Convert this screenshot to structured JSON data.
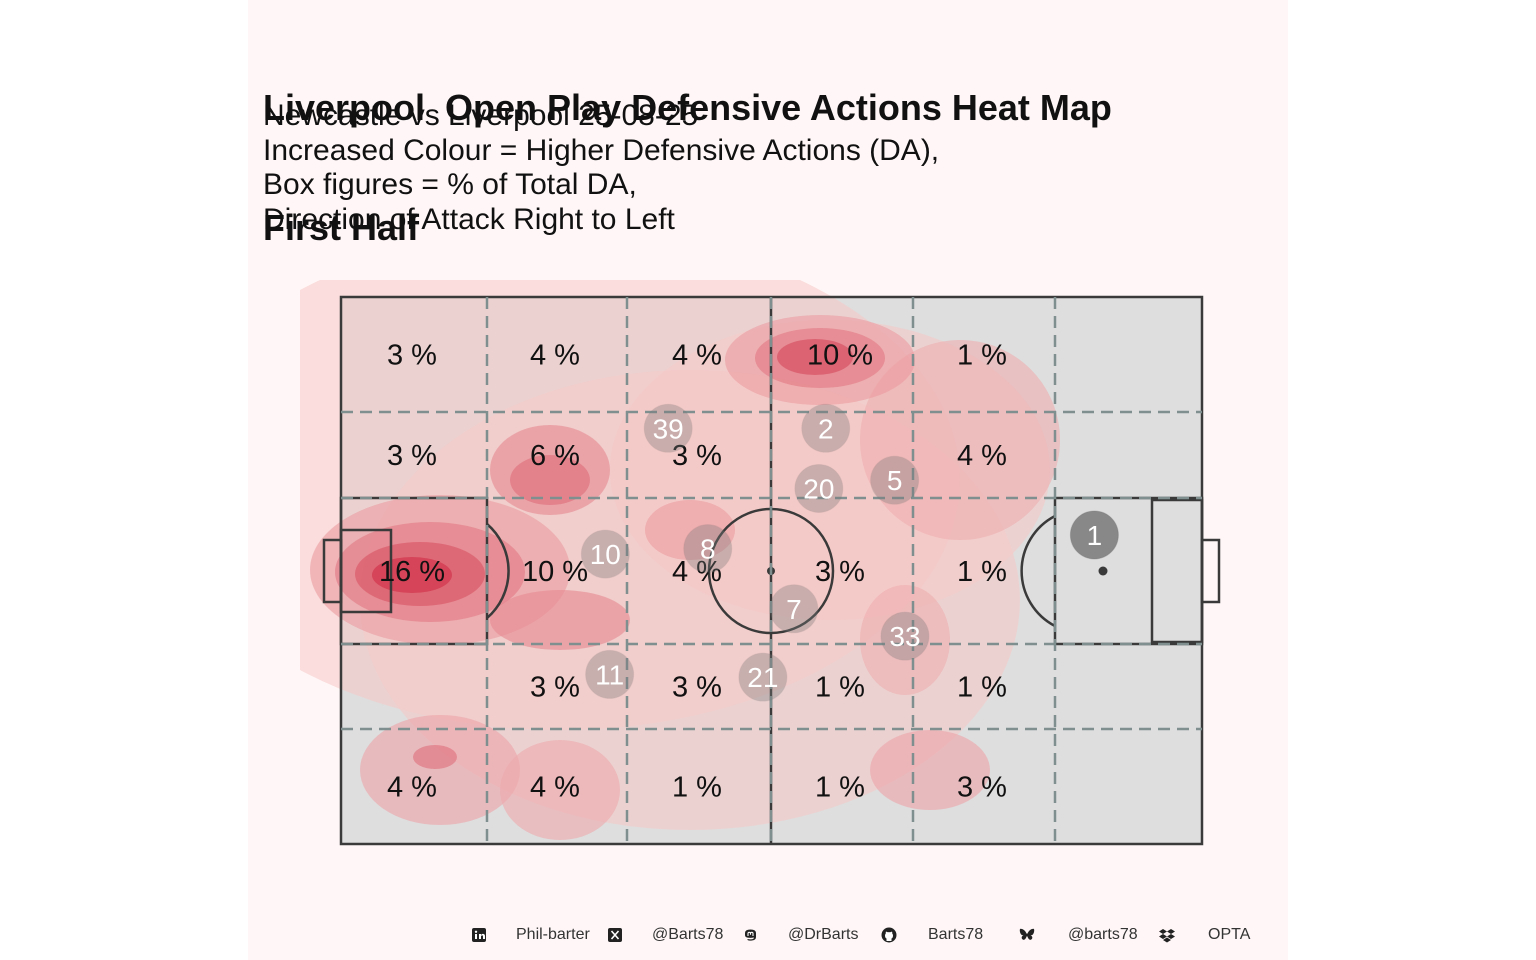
{
  "title_lines": [
    "Liverpool  Open Play Defensive Actions Heat Map",
    "First Half"
  ],
  "subtitle_lines": [
    "Newcastle vs Liverpool 25-08-25",
    "Increased Colour = Higher Defensive Actions (DA),",
    "Box figures = % of Total DA,",
    "Direction of Attack Right to Left"
  ],
  "colors": {
    "panel_background": "#fff7f7",
    "pitch_fill": "#dedede",
    "pitch_lines": "#3a3a3a",
    "zone_lines": "#7f8f8f",
    "heat_low": "#f6c9c6",
    "heat_high": "#c8102e",
    "player_marker": "#7a7a7a"
  },
  "chart_data": {
    "type": "heatmap",
    "title": "Liverpool  Open Play Defensive Actions Heat Map First Half",
    "units": "% of Total DA",
    "grid": {
      "columns": 6,
      "rows": 5
    },
    "zone_labels": [
      [
        "3 %",
        "4 %",
        "4 %",
        "10 %",
        "1 %",
        ""
      ],
      [
        "3 %",
        "6 %",
        "3 %",
        "",
        "4 %",
        ""
      ],
      [
        "16 %",
        "10 %",
        "4 %",
        "3 %",
        "1 %",
        ""
      ],
      [
        "",
        "3 %",
        "3 %",
        "1 %",
        "1 %",
        ""
      ],
      [
        "4 %",
        "4 %",
        "1 %",
        "1 %",
        "3 %",
        ""
      ]
    ],
    "zone_values": [
      [
        3,
        4,
        4,
        10,
        1,
        null
      ],
      [
        3,
        6,
        3,
        null,
        4,
        null
      ],
      [
        16,
        10,
        4,
        3,
        1,
        null
      ],
      [
        null,
        3,
        3,
        1,
        1,
        null
      ],
      [
        4,
        4,
        1,
        1,
        3,
        null
      ]
    ],
    "player_positions": [
      {
        "label": "39",
        "x": 38.0,
        "y": 24.0
      },
      {
        "label": "2",
        "x": 56.3,
        "y": 24.0
      },
      {
        "label": "20",
        "x": 55.5,
        "y": 35.0
      },
      {
        "label": "5",
        "x": 64.3,
        "y": 33.5
      },
      {
        "label": "1",
        "x": 87.5,
        "y": 43.5
      },
      {
        "label": "8",
        "x": 42.6,
        "y": 46.0
      },
      {
        "label": "10",
        "x": 30.7,
        "y": 47.0
      },
      {
        "label": "7",
        "x": 52.6,
        "y": 57.0
      },
      {
        "label": "33",
        "x": 65.5,
        "y": 62.0
      },
      {
        "label": "11",
        "x": 31.2,
        "y": 69.0
      },
      {
        "label": "21",
        "x": 49.0,
        "y": 69.5
      }
    ]
  },
  "footer": {
    "linkedin": {
      "icon": "linkedin-icon",
      "text": "Phil-barter"
    },
    "x": {
      "icon": "x-icon",
      "text": "@Barts78"
    },
    "mastodon": {
      "icon": "mastodon-icon",
      "text": "@DrBarts"
    },
    "github": {
      "icon": "github-icon",
      "text": "Barts78"
    },
    "bluesky": {
      "icon": "bluesky-icon",
      "text": "@barts78"
    },
    "dropbox": {
      "icon": "dropbox-icon",
      "text": "OPTA"
    }
  }
}
